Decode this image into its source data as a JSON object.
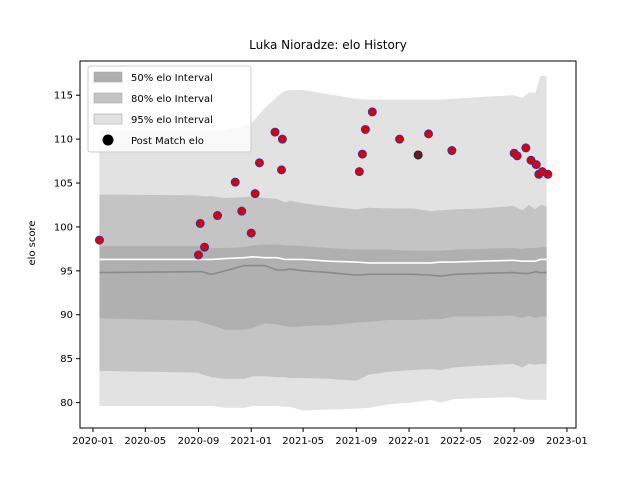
{
  "chart_data": {
    "type": "scatter",
    "title": "Luka Nioradze: elo History",
    "xlabel": "",
    "ylabel": "elo score",
    "xlim": [
      "2019-12-02",
      "2023-01-22"
    ],
    "ylim": [
      77.1,
      118.9
    ],
    "x_ticks": [
      "2020-01",
      "2020-05",
      "2020-09",
      "2021-01",
      "2021-05",
      "2021-09",
      "2022-01",
      "2022-05",
      "2022-09",
      "2023-01"
    ],
    "y_ticks": [
      80,
      85,
      90,
      95,
      100,
      105,
      110,
      115
    ],
    "grid": false,
    "legend_position": "upper left",
    "legend": [
      "50% elo Interval",
      "80% elo Interval",
      "95% elo Interval",
      "Post Match elo"
    ],
    "colors": {
      "band50": "#b0b0b0",
      "band80": "#c4c4c4",
      "band95": "#e2e2e2",
      "median_line": "#8a8a8a",
      "mean_line": "#ffffff",
      "marker_fill": "#dd0000",
      "marker_edge": "#3333aa",
      "marker_dark": "#6b1a1a"
    },
    "bands": {
      "x": [
        "2020-01-16",
        "2020-08-30",
        "2020-09-10",
        "2020-10-01",
        "2020-11-01",
        "2020-12-15",
        "2021-01-05",
        "2021-02-01",
        "2021-03-01",
        "2021-03-20",
        "2021-04-01",
        "2021-05-01",
        "2021-07-01",
        "2021-09-01",
        "2021-10-01",
        "2021-11-15",
        "2022-01-10",
        "2022-02-20",
        "2022-03-15",
        "2022-04-15",
        "2022-06-15",
        "2022-08-30",
        "2022-09-20",
        "2022-10-05",
        "2022-10-20",
        "2022-11-01",
        "2022-11-15"
      ],
      "p975": [
        111.0,
        111.0,
        111.0,
        111.0,
        111.0,
        111.5,
        112.0,
        113.5,
        114.8,
        115.5,
        115.6,
        115.6,
        115.1,
        114.6,
        114.5,
        114.5,
        114.5,
        114.5,
        114.5,
        114.6,
        114.8,
        115.0,
        114.7,
        115.3,
        115.3,
        117.2,
        117.2
      ],
      "p90": [
        103.7,
        103.6,
        103.5,
        103.5,
        103.3,
        103.4,
        103.5,
        103.3,
        103.2,
        102.8,
        103.0,
        102.7,
        102.3,
        102.0,
        102.2,
        102.1,
        102.1,
        101.8,
        101.9,
        102.0,
        102.1,
        102.4,
        101.9,
        102.5,
        102.0,
        102.5,
        102.4
      ],
      "p75": [
        97.8,
        97.8,
        97.8,
        97.6,
        97.6,
        97.7,
        97.9,
        98.0,
        98.0,
        97.9,
        97.9,
        97.8,
        97.6,
        97.4,
        97.4,
        97.4,
        97.3,
        97.3,
        97.3,
        97.4,
        97.5,
        97.6,
        97.5,
        97.6,
        97.6,
        97.7,
        97.7
      ],
      "mean": [
        96.3,
        96.3,
        96.3,
        96.3,
        96.4,
        96.5,
        96.6,
        96.5,
        96.5,
        96.3,
        96.3,
        96.3,
        96.1,
        96.0,
        95.9,
        95.9,
        95.9,
        95.9,
        96.0,
        96.0,
        96.1,
        96.2,
        96.1,
        96.1,
        96.1,
        96.3,
        96.3
      ],
      "median": [
        94.8,
        94.9,
        94.9,
        94.6,
        95.0,
        95.6,
        95.6,
        95.6,
        95.1,
        95.1,
        95.2,
        95.0,
        94.8,
        94.5,
        94.6,
        94.6,
        94.6,
        94.5,
        94.4,
        94.6,
        94.7,
        94.8,
        94.7,
        94.7,
        94.9,
        94.8,
        94.8
      ],
      "p25": [
        89.6,
        89.3,
        89.1,
        88.8,
        88.3,
        88.3,
        88.5,
        89.0,
        88.9,
        88.7,
        88.6,
        88.7,
        88.8,
        89.1,
        89.2,
        89.4,
        89.4,
        89.5,
        89.5,
        89.8,
        89.8,
        89.9,
        89.6,
        89.9,
        89.6,
        89.8,
        89.8
      ],
      "p10": [
        83.6,
        83.4,
        83.2,
        82.9,
        82.7,
        82.7,
        83.0,
        83.0,
        82.9,
        82.9,
        82.8,
        82.8,
        82.7,
        82.5,
        83.2,
        83.5,
        83.7,
        83.8,
        83.7,
        84.0,
        84.2,
        84.4,
        84.0,
        84.4,
        84.3,
        84.4,
        84.4
      ],
      "p025": [
        79.6,
        79.6,
        79.6,
        79.6,
        79.4,
        79.4,
        79.6,
        79.6,
        79.6,
        79.5,
        79.5,
        79.1,
        79.2,
        79.3,
        79.4,
        79.8,
        80.0,
        80.3,
        80.0,
        80.4,
        80.5,
        80.6,
        80.4,
        80.3,
        80.3,
        80.3,
        80.3
      ]
    },
    "series": [
      {
        "name": "Post Match elo",
        "x": [
          "2020-01-16",
          "2020-09-01",
          "2020-09-05",
          "2020-09-15",
          "2020-10-15",
          "2020-11-25",
          "2020-12-10",
          "2021-01-01",
          "2021-01-10",
          "2021-01-20",
          "2021-02-25",
          "2021-03-12",
          "2021-03-14",
          "2021-09-08",
          "2021-09-15",
          "2021-09-22",
          "2021-10-08",
          "2021-12-10",
          "2022-01-22",
          "2022-02-15",
          "2022-04-10",
          "2022-09-01",
          "2022-09-08",
          "2022-09-28",
          "2022-10-10",
          "2022-10-22",
          "2022-10-28",
          "2022-11-05",
          "2022-11-18"
        ],
        "y": [
          98.5,
          96.8,
          100.4,
          97.7,
          101.3,
          105.1,
          101.8,
          99.3,
          103.8,
          107.3,
          110.8,
          106.5,
          110.0,
          106.3,
          108.3,
          111.1,
          113.1,
          110.0,
          108.2,
          110.6,
          108.7,
          108.4,
          108.1,
          109.0,
          107.6,
          107.1,
          106.0,
          106.3,
          106.0
        ]
      }
    ],
    "dark_point_index": 18
  }
}
